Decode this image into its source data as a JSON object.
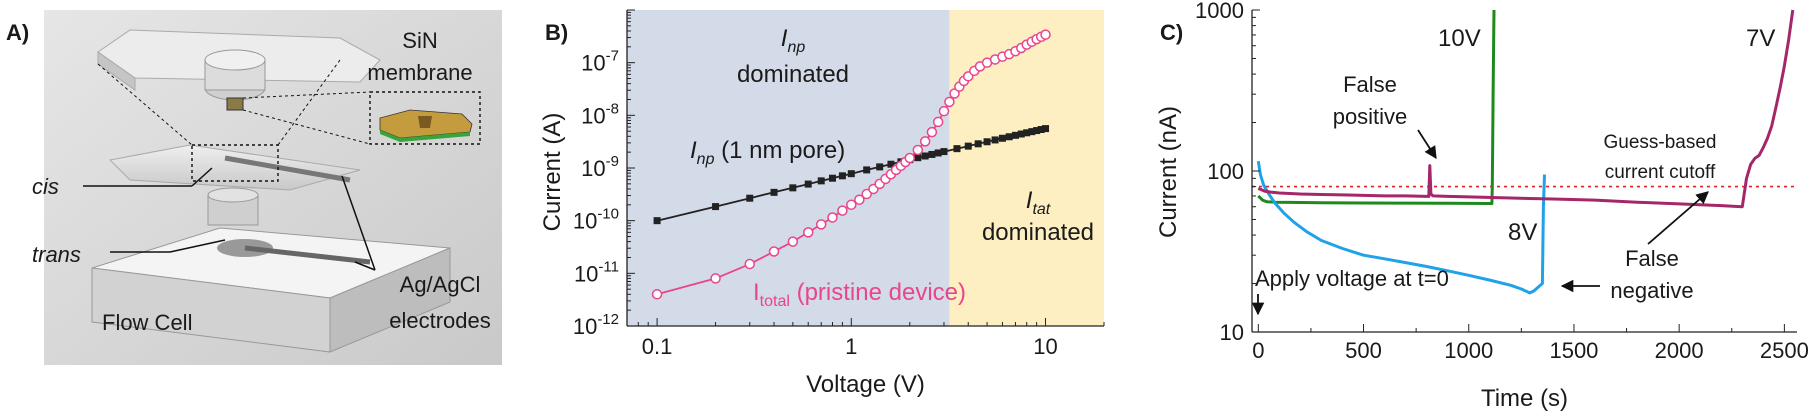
{
  "panel_a": {
    "letter": "A)",
    "labels": {
      "membrane_line1": "SiN",
      "membrane_line2": "membrane",
      "cis": "cis",
      "trans": "trans",
      "flow_cell": "Flow Cell",
      "electrodes_line1": "Ag/AgCl",
      "electrodes_line2": "electrodes"
    }
  },
  "chart_data": [
    {
      "id": "B",
      "letter": "B)",
      "type": "scatter",
      "xscale": "log",
      "yscale": "log",
      "xlim": [
        0.07,
        20
      ],
      "ylim": [
        1e-12,
        1e-06
      ],
      "xlabel": "Voltage (V)",
      "ylabel": "Current (A)",
      "xticks": [
        {
          "v": 0.1,
          "label": "0.1"
        },
        {
          "v": 1,
          "label": "1"
        },
        {
          "v": 10,
          "label": "10"
        }
      ],
      "yticks": [
        {
          "v": 1e-12,
          "base": "10",
          "exp": "-12"
        },
        {
          "v": 1e-11,
          "base": "10",
          "exp": "-11"
        },
        {
          "v": 1e-10,
          "base": "10",
          "exp": "-10"
        },
        {
          "v": 1e-09,
          "base": "10",
          "exp": "-9"
        },
        {
          "v": 1e-08,
          "base": "10",
          "exp": "-8"
        },
        {
          "v": 1e-07,
          "base": "10",
          "exp": "-7"
        }
      ],
      "regions": [
        {
          "x0": 0.07,
          "x1": 3.2,
          "color": "#d4dbe8",
          "label_main": "I",
          "label_sub": "np",
          "label_line2": "dominated"
        },
        {
          "x0": 3.2,
          "x1": 20,
          "color": "#fdefc2",
          "label_main": "I",
          "label_sub": "tat",
          "label_line2": "dominated"
        }
      ],
      "series": [
        {
          "name_main": "I",
          "name_sub": "np",
          "name_rest": " (1 nm pore)",
          "color": "#222222",
          "marker": "square",
          "x": [
            0.1,
            0.2,
            0.3,
            0.4,
            0.5,
            0.6,
            0.7,
            0.8,
            0.9,
            1.0,
            1.2,
            1.4,
            1.6,
            1.8,
            2.0,
            2.2,
            2.4,
            2.6,
            2.8,
            3.0,
            3.5,
            4,
            4.5,
            5,
            5.5,
            6,
            6.5,
            7,
            7.5,
            8,
            8.5,
            9,
            9.5,
            10
          ],
          "y": [
            1e-10,
            1.85e-10,
            2.67e-10,
            3.45e-10,
            4.2e-10,
            4.95e-10,
            5.7e-10,
            6.4e-10,
            7.1e-10,
            7.8e-10,
            9.2e-10,
            1.05e-09,
            1.18e-09,
            1.31e-09,
            1.44e-09,
            1.57e-09,
            1.69e-09,
            1.81e-09,
            1.93e-09,
            2.05e-09,
            2.33e-09,
            2.6e-09,
            2.88e-09,
            3.15e-09,
            3.41e-09,
            3.67e-09,
            3.92e-09,
            4.17e-09,
            4.42e-09,
            4.66e-09,
            4.9e-09,
            5.14e-09,
            5.38e-09,
            5.6e-09
          ]
        },
        {
          "name_main": "I",
          "name_sub": "total",
          "name_rest": " (pristine device)",
          "color": "#e8458c",
          "marker": "circle-open",
          "x": [
            0.1,
            0.2,
            0.3,
            0.4,
            0.5,
            0.6,
            0.7,
            0.8,
            0.9,
            1.0,
            1.1,
            1.2,
            1.3,
            1.4,
            1.5,
            1.6,
            1.7,
            1.8,
            1.9,
            2.0,
            2.2,
            2.4,
            2.6,
            2.8,
            3.0,
            3.2,
            3.4,
            3.6,
            3.8,
            4.0,
            4.3,
            4.6,
            5.0,
            5.5,
            6.0,
            6.5,
            7.0,
            7.5,
            8.0,
            8.5,
            9.0,
            9.5,
            10.0
          ],
          "y": [
            4e-12,
            8e-12,
            1.5e-11,
            2.6e-11,
            4e-11,
            6e-11,
            8.5e-11,
            1.15e-10,
            1.55e-10,
            2e-10,
            2.5e-10,
            3.2e-10,
            4e-10,
            5e-10,
            6.2e-10,
            7.6e-10,
            9.2e-10,
            1.1e-09,
            1.3e-09,
            1.55e-09,
            2.2e-09,
            3.2e-09,
            4.8e-09,
            7.5e-09,
            1.2e-08,
            1.8e-08,
            2.6e-08,
            3.5e-08,
            4.5e-08,
            5.5e-08,
            7e-08,
            8.5e-08,
            1e-07,
            1.15e-07,
            1.3e-07,
            1.45e-07,
            1.65e-07,
            1.9e-07,
            2.2e-07,
            2.5e-07,
            2.8e-07,
            3.1e-07,
            3.4e-07
          ]
        }
      ]
    },
    {
      "id": "C",
      "letter": "C)",
      "type": "line",
      "yscale": "log",
      "xlim": [
        -30,
        2560
      ],
      "ylim": [
        10,
        1000
      ],
      "xlabel": "Time (s)",
      "ylabel": "Current (nA)",
      "xticks": [
        {
          "v": 0,
          "label": "0"
        },
        {
          "v": 500,
          "label": "500"
        },
        {
          "v": 1000,
          "label": "1000"
        },
        {
          "v": 1500,
          "label": "1500"
        },
        {
          "v": 2000,
          "label": "2000"
        },
        {
          "v": 2500,
          "label": "2500"
        }
      ],
      "yticks": [
        {
          "v": 10,
          "label": "10"
        },
        {
          "v": 100,
          "label": "100"
        },
        {
          "v": 1000,
          "label": "1000"
        }
      ],
      "cutoff": {
        "y": 80,
        "color": "#e82020",
        "label_line1": "Guess-based",
        "label_line2": "current cutoff"
      },
      "series": [
        {
          "name": "10V",
          "color": "#1e8a1e",
          "x": [
            0,
            20,
            40,
            80,
            150,
            300,
            500,
            700,
            900,
            1100,
            1110,
            1112,
            1114,
            1116,
            1118,
            1120
          ],
          "y": [
            70,
            66,
            64.5,
            64,
            63.8,
            63.5,
            63.3,
            63.2,
            63,
            62.8,
            62.8,
            80,
            150,
            300,
            600,
            1000
          ]
        },
        {
          "name": "8V",
          "color": "#1fa2e8",
          "x": [
            0,
            10,
            25,
            50,
            80,
            120,
            170,
            230,
            300,
            400,
            500,
            600,
            700,
            800,
            900,
            1000,
            1100,
            1200,
            1250,
            1290,
            1310,
            1330,
            1350,
            1355,
            1360
          ],
          "y": [
            115,
            95,
            82,
            72,
            63,
            55,
            48,
            42,
            37,
            33,
            30,
            28.5,
            27,
            25.5,
            24,
            22.5,
            21,
            19.5,
            18.5,
            17.5,
            18,
            19,
            20,
            60,
            95
          ]
        },
        {
          "name": "7V",
          "color": "#a4276a",
          "x": [
            0,
            30,
            60,
            100,
            200,
            300,
            400,
            500,
            600,
            700,
            800,
            810,
            815,
            820,
            830,
            900,
            1000,
            1200,
            1400,
            1600,
            1800,
            2000,
            2200,
            2300,
            2320,
            2340,
            2360,
            2380,
            2400,
            2420,
            2440,
            2460,
            2480,
            2500,
            2520,
            2540
          ],
          "y": [
            78,
            75,
            74,
            73,
            72,
            71.5,
            71,
            70.5,
            70,
            70,
            69.5,
            69.5,
            108,
            72,
            70,
            69.5,
            69,
            68,
            67,
            66,
            64,
            62.5,
            61,
            60,
            90,
            110,
            120,
            125,
            140,
            160,
            190,
            250,
            330,
            450,
            650,
            1000
          ]
        }
      ],
      "annotations": {
        "false_positive": {
          "line1": "False",
          "line2": "positive"
        },
        "false_negative": {
          "line1": "False",
          "line2": "negative"
        },
        "apply_voltage": "Apply voltage at t=0"
      }
    }
  ]
}
